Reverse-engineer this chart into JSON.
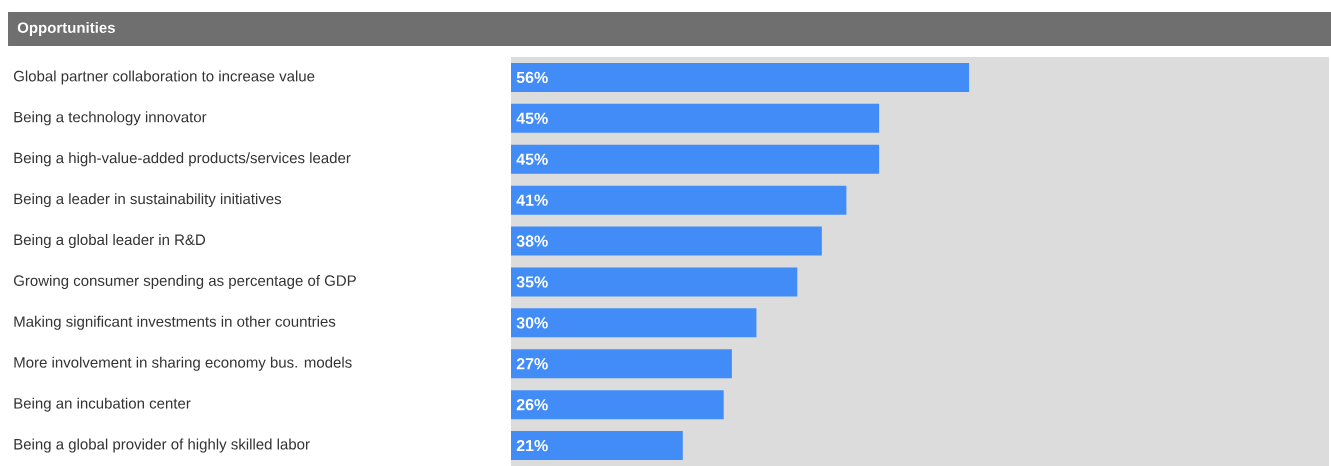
{
  "chart_data": {
    "type": "bar",
    "orientation": "horizontal",
    "title": "Opportunities",
    "categories": [
      "Global partner collaboration to increase value",
      "Being a technology innovator",
      "Being a high-value-added products/services leader",
      "Being a leader in sustainability initiatives",
      "Being a global leader in R&D",
      "Growing consumer spending as percentage of GDP",
      "Making significant investments in other countries",
      "More involvement in sharing economy bus. models",
      "Being an incubation center",
      "Being a global provider of highly skilled labor"
    ],
    "values": [
      56,
      45,
      45,
      41,
      38,
      35,
      30,
      27,
      26,
      21
    ],
    "value_labels": [
      "56%",
      "45%",
      "45%",
      "41%",
      "38%",
      "35%",
      "30%",
      "27%",
      "26%",
      "21%"
    ],
    "color": "#428cf7",
    "xlim": [
      0,
      100
    ],
    "tick_labels": "y"
  }
}
